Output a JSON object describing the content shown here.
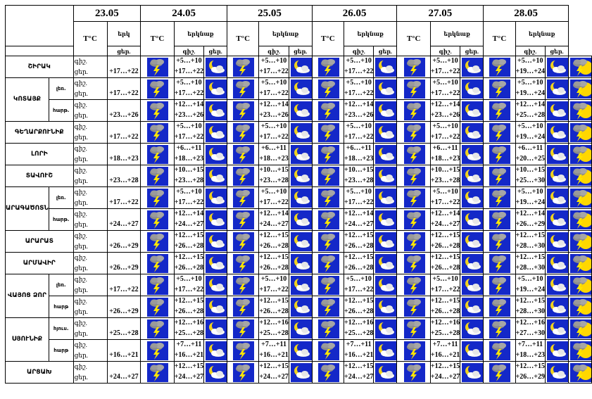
{
  "table": {
    "tc_label": "T°C",
    "icon_group_label": "երկնաք",
    "icon_group_label_short": "երկ",
    "night_label": "գիշ.",
    "day_label": "ցեր.",
    "night_row_label": "գիշ.",
    "day_row_label": "ցեր.",
    "dates": [
      "23.05",
      "24.05",
      "25.05",
      "26.05",
      "27.05",
      "28.05"
    ]
  },
  "rows": [
    {
      "region": "ՇԻՐԱԿ",
      "sub": "",
      "temps": [
        [
          "",
          "+17…+22"
        ],
        [
          "+5…+10",
          "+17…+22"
        ],
        [
          "+5…+10",
          "+17…+22"
        ],
        [
          "+5…+10",
          "+17…+22"
        ],
        [
          "+5…+10",
          "+17…+22"
        ],
        [
          "+5…+10",
          "+19…+24"
        ]
      ]
    },
    {
      "region": "ԿՈՏԱՅՔ",
      "sub": "լեռ.",
      "temps": [
        [
          "",
          "+17…+22"
        ],
        [
          "+5…+10",
          "+17…+22"
        ],
        [
          "+5…+10",
          "+17…+22"
        ],
        [
          "+5…+10",
          "+17…+22"
        ],
        [
          "+5…+10",
          "+17…+22"
        ],
        [
          "+5…+10",
          "+19…+24"
        ]
      ]
    },
    {
      "region": "",
      "sub": "հարթ.",
      "temps": [
        [
          "",
          "+23…+26"
        ],
        [
          "+12…+14",
          "+23…+26"
        ],
        [
          "+12…+14",
          "+23…+26"
        ],
        [
          "+12…+14",
          "+23…+26"
        ],
        [
          "+12…+14",
          "+23…+26"
        ],
        [
          "+12…+14",
          "+25…+28"
        ]
      ]
    },
    {
      "region": "ԳԵՂԱՐՔՈՒՆԻՔ",
      "sub": "",
      "temps": [
        [
          "",
          "+17…+22"
        ],
        [
          "+5…+10",
          "+17…+22"
        ],
        [
          "+5…+10",
          "+17…+22"
        ],
        [
          "+5…+10",
          "+17…+22"
        ],
        [
          "+5…+10",
          "+17…+22"
        ],
        [
          "+5…+10",
          "+19…+24"
        ]
      ]
    },
    {
      "region": "ԼՈՐԻ",
      "sub": "",
      "temps": [
        [
          "",
          "+18…+23"
        ],
        [
          "+6…+11",
          "+18…+23"
        ],
        [
          "+6…+11",
          "+18…+23"
        ],
        [
          "+6…+11",
          "+18…+23"
        ],
        [
          "+6…+11",
          "+18…+23"
        ],
        [
          "+6…+11",
          "+20…+25"
        ]
      ]
    },
    {
      "region": "ՏԱՎՈՒՇ",
      "sub": "",
      "temps": [
        [
          "",
          "+23…+28"
        ],
        [
          "+10…+15",
          "+23…+28"
        ],
        [
          "+10…+15",
          "+23…+28"
        ],
        [
          "+10…+15",
          "+23…+28"
        ],
        [
          "+10…+15",
          "+23…+28"
        ],
        [
          "+10…+15",
          "+25…+30"
        ]
      ]
    },
    {
      "region": "ԱՐԱԳԱԾՈՏՆ",
      "sub": "լեռ.",
      "temps": [
        [
          "",
          "+17…+22"
        ],
        [
          "+5…+10",
          "+17…+22"
        ],
        [
          "+5…+10",
          "+17…+22"
        ],
        [
          "+5…+10",
          "+17…+22"
        ],
        [
          "+5…+10",
          "+17…+22"
        ],
        [
          "+5…+10",
          "+19…+24"
        ]
      ]
    },
    {
      "region": "",
      "sub": "հարթ.",
      "temps": [
        [
          "",
          "+24…+27"
        ],
        [
          "+12…+14",
          "+24…+27"
        ],
        [
          "+12…+14",
          "+24…+27"
        ],
        [
          "+12…+14",
          "+24…+27"
        ],
        [
          "+12…+14",
          "+24…+27"
        ],
        [
          "+12…+14",
          "+26…+29"
        ]
      ]
    },
    {
      "region": "ԱՐԱՐԱՏ",
      "sub": "",
      "temps": [
        [
          "",
          "+26…+29"
        ],
        [
          "+12…+15",
          "+26…+28"
        ],
        [
          "+12…+15",
          "+26…+28"
        ],
        [
          "+12…+15",
          "+26…+28"
        ],
        [
          "+12…+15",
          "+26…+28"
        ],
        [
          "+12…+15",
          "+28…+30"
        ]
      ]
    },
    {
      "region": "ԱՐՄԱՎԻՐ",
      "sub": "",
      "temps": [
        [
          "",
          "+26…+29"
        ],
        [
          "+12…+15",
          "+26…+28"
        ],
        [
          "+12…+15",
          "+26…+28"
        ],
        [
          "+12…+15",
          "+26…+28"
        ],
        [
          "+12…+15",
          "+26…+28"
        ],
        [
          "+12…+15",
          "+28…+30"
        ]
      ]
    },
    {
      "region": "ՎԱՅՈՑ ՁՈՐ",
      "sub": "լեռ.",
      "temps": [
        [
          "",
          "+17…+22"
        ],
        [
          "+5…+10",
          "+17…+22"
        ],
        [
          "+5…+10",
          "+17…+22"
        ],
        [
          "+5…+10",
          "+17…+22"
        ],
        [
          "+5…+10",
          "+17…+22"
        ],
        [
          "+5…+10",
          "+19…+24"
        ]
      ]
    },
    {
      "region": "",
      "sub": "հարթ",
      "temps": [
        [
          "",
          "+26…+29"
        ],
        [
          "+12…+15",
          "+26…+28"
        ],
        [
          "+12…+15",
          "+26…+28"
        ],
        [
          "+12…+15",
          "+26…+28"
        ],
        [
          "+12…+15",
          "+26…+28"
        ],
        [
          "+12…+15",
          "+28…+30"
        ]
      ]
    },
    {
      "region": "ՍՅՈՒՆԻՔ",
      "sub": "հյուս.",
      "temps": [
        [
          "",
          "+25…+28"
        ],
        [
          "+12…+16",
          "+25…+28"
        ],
        [
          "+12…+16",
          "+25…+28"
        ],
        [
          "+12…+16",
          "+25…+28"
        ],
        [
          "+12…+16",
          "+25…+28"
        ],
        [
          "+12…+16",
          "+27…+30"
        ]
      ]
    },
    {
      "region": "",
      "sub": "հարթ",
      "temps": [
        [
          "",
          "+16…+21"
        ],
        [
          "+7…+11",
          "+16…+21"
        ],
        [
          "+7…+11",
          "+16…+21"
        ],
        [
          "+7…+11",
          "+16…+21"
        ],
        [
          "+7…+11",
          "+16…+21"
        ],
        [
          "+7…+11",
          "+18…+23"
        ]
      ]
    },
    {
      "region": "ԱՐՑԱԽ",
      "sub": "",
      "temps": [
        [
          "",
          "+24…+27"
        ],
        [
          "+12…+15",
          "+24…+27"
        ],
        [
          "+12…+15",
          "+24…+27"
        ],
        [
          "+12…+15",
          "+24…+27"
        ],
        [
          "+12…+15",
          "+24…+27"
        ],
        [
          "+12…+15",
          "+26…+29"
        ]
      ]
    }
  ],
  "icons": {
    "night": "moon-cloud-icon",
    "day": "thunderstorm-icon",
    "day_last": "sun-thunderstorm-icon"
  },
  "colors": {
    "sky_blue": "#1428c8",
    "moon_yellow": "#f0d21e",
    "sun_yellow": "#ffd700",
    "lightning_yellow": "#ffe600"
  }
}
